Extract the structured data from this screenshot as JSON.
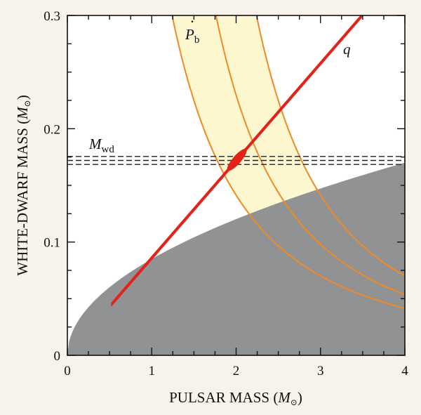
{
  "chart_data": {
    "type": "line",
    "xlabel": "PULSAR MASS",
    "xlabel_unit": "M",
    "ylabel": "WHITE-DWARF MASS",
    "ylabel_unit": "M",
    "xlim": [
      0,
      4
    ],
    "ylim": [
      0,
      0.3
    ],
    "x_ticks": [
      0,
      1,
      2,
      3,
      4
    ],
    "x_minor_step": 0.25,
    "y_ticks": [
      0,
      0.1,
      0.2,
      0.3
    ],
    "y_tick_labels": [
      "0",
      "0.1",
      "0.2",
      "0.3"
    ],
    "y_minor_step": 0.025,
    "colors": {
      "background": "#f7f2ea",
      "plot_bg": "#ffffff",
      "excluded_region": "#919294",
      "pb_band_fill": "#fdf7cf",
      "pb_band_line": "#f08a24",
      "q_line": "#e2231a",
      "mwd_line": "#222222",
      "axis": "#111111"
    },
    "series": [
      {
        "name": "Pdot_b",
        "label": "P",
        "label_sub": "b",
        "label_accent": "·",
        "kind": "band",
        "center_anchor": [
          2.45,
          0.15
        ],
        "offsets": [
          -0.52,
          0,
          0.48
        ],
        "exponent": 2.1
      },
      {
        "name": "q",
        "label": "q",
        "kind": "line",
        "slope": 0.08588,
        "offsets": [
          -0.0012,
          0,
          0.0012
        ],
        "x_range": [
          0.52,
          3.5
        ]
      },
      {
        "name": "M_wd",
        "label": "M",
        "label_sub": "wd",
        "kind": "hband",
        "values": [
          0.1685,
          0.172,
          0.1755
        ],
        "dash": true
      },
      {
        "name": "excluded",
        "kind": "region",
        "function": "0.085*sqrt(x)"
      }
    ],
    "intersection": {
      "x": 2.01,
      "y": 0.1728,
      "x_range": [
        1.9,
        2.12
      ]
    },
    "unit_symbol": "⊙"
  }
}
